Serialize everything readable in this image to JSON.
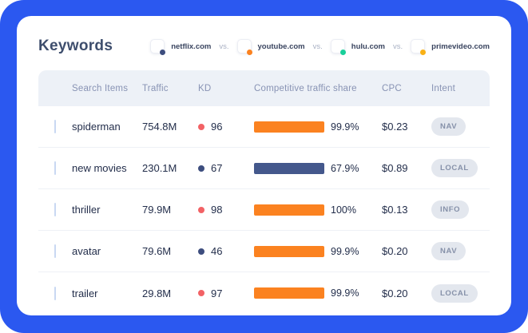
{
  "page": {
    "title": "Keywords"
  },
  "legend": {
    "separator": "vs.",
    "competitors": [
      {
        "domain": "netflix.com",
        "color": "#3d4d7e"
      },
      {
        "domain": "youtube.com",
        "color": "#fb8220"
      },
      {
        "domain": "hulu.com",
        "color": "#19cf9a"
      },
      {
        "domain": "primevideo.com",
        "color": "#f9b116"
      }
    ]
  },
  "table": {
    "columns": {
      "search_items": "Search Items",
      "traffic": "Traffic",
      "kd": "KD",
      "share": "Competitive traffic share",
      "cpc": "CPC",
      "intent": "Intent"
    },
    "rows": [
      {
        "keyword": "spiderman",
        "traffic": "754.8M",
        "kd": "96",
        "kd_color": "#f26265",
        "share": "99.9%",
        "bar_color": "#fb8220",
        "cpc": "$0.23",
        "intent": "NAV"
      },
      {
        "keyword": "new movies",
        "traffic": "230.1M",
        "kd": "67",
        "kd_color": "#3d4d7e",
        "share": "67.9%",
        "bar_color": "#44588c",
        "cpc": "$0.89",
        "intent": "LOCAL"
      },
      {
        "keyword": "thriller",
        "traffic": "79.9M",
        "kd": "98",
        "kd_color": "#f26265",
        "share": "100%",
        "bar_color": "#fb8220",
        "cpc": "$0.13",
        "intent": "INFO"
      },
      {
        "keyword": "avatar",
        "traffic": "79.6M",
        "kd": "46",
        "kd_color": "#3d4d7e",
        "share": "99.9%",
        "bar_color": "#fb8220",
        "cpc": "$0.20",
        "intent": "NAV"
      },
      {
        "keyword": "trailer",
        "traffic": "29.8M",
        "kd": "97",
        "kd_color": "#f26265",
        "share": "99.9%",
        "bar_color": "#fb8220",
        "cpc": "$0.20",
        "intent": "LOCAL"
      }
    ]
  },
  "colors": {
    "frame_blue": "#2b58f0",
    "header_bg": "#edf1f7",
    "badge_bg": "#e3e7ee"
  }
}
